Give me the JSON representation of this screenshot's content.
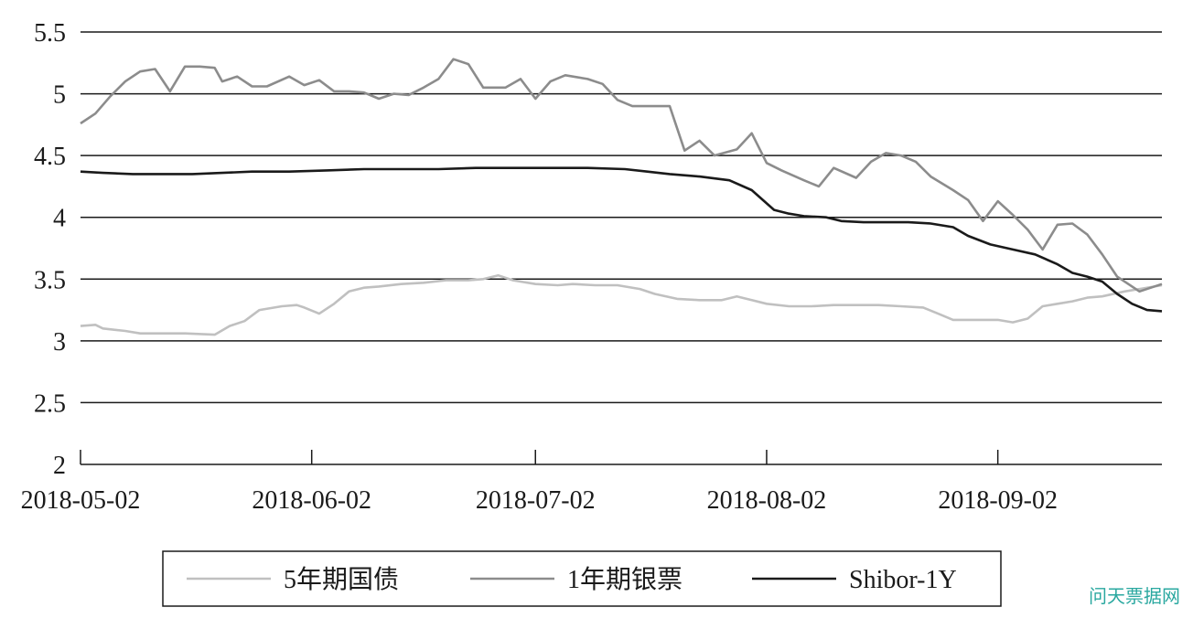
{
  "watermark": "问天票据网",
  "chart_data": {
    "type": "line",
    "title": "",
    "xlabel": "",
    "ylabel": "",
    "ylim": [
      2,
      5.5
    ],
    "yticks": [
      "2",
      "2.5",
      "3",
      "3.5",
      "4",
      "4.5",
      "5",
      "5.5"
    ],
    "xticks": [
      "2018-05-02",
      "2018-06-02",
      "2018-07-02",
      "2018-08-02",
      "2018-09-02"
    ],
    "x_range": [
      "2018-05-02",
      "2018-09-24"
    ],
    "grid": "horizontal",
    "legend": "bottom",
    "series": [
      {
        "name": "5年期国债",
        "color": "#c0c0c0",
        "points": [
          [
            "2018-05-02",
            3.12
          ],
          [
            "2018-05-04",
            3.13
          ],
          [
            "2018-05-05",
            3.1
          ],
          [
            "2018-05-08",
            3.08
          ],
          [
            "2018-05-10",
            3.06
          ],
          [
            "2018-05-13",
            3.06
          ],
          [
            "2018-05-16",
            3.06
          ],
          [
            "2018-05-20",
            3.05
          ],
          [
            "2018-05-22",
            3.12
          ],
          [
            "2018-05-24",
            3.16
          ],
          [
            "2018-05-26",
            3.25
          ],
          [
            "2018-05-29",
            3.28
          ],
          [
            "2018-05-31",
            3.29
          ],
          [
            "2018-06-01",
            3.27
          ],
          [
            "2018-06-03",
            3.22
          ],
          [
            "2018-06-05",
            3.3
          ],
          [
            "2018-06-07",
            3.4
          ],
          [
            "2018-06-09",
            3.43
          ],
          [
            "2018-06-11",
            3.44
          ],
          [
            "2018-06-14",
            3.46
          ],
          [
            "2018-06-17",
            3.47
          ],
          [
            "2018-06-20",
            3.49
          ],
          [
            "2018-06-23",
            3.49
          ],
          [
            "2018-06-25",
            3.5
          ],
          [
            "2018-06-27",
            3.53
          ],
          [
            "2018-06-29",
            3.49
          ],
          [
            "2018-07-02",
            3.46
          ],
          [
            "2018-07-05",
            3.45
          ],
          [
            "2018-07-07",
            3.46
          ],
          [
            "2018-07-10",
            3.45
          ],
          [
            "2018-07-13",
            3.45
          ],
          [
            "2018-07-16",
            3.42
          ],
          [
            "2018-07-18",
            3.38
          ],
          [
            "2018-07-21",
            3.34
          ],
          [
            "2018-07-24",
            3.33
          ],
          [
            "2018-07-27",
            3.33
          ],
          [
            "2018-07-29",
            3.36
          ],
          [
            "2018-07-31",
            3.33
          ],
          [
            "2018-08-02",
            3.3
          ],
          [
            "2018-08-05",
            3.28
          ],
          [
            "2018-08-08",
            3.28
          ],
          [
            "2018-08-11",
            3.29
          ],
          [
            "2018-08-14",
            3.29
          ],
          [
            "2018-08-17",
            3.29
          ],
          [
            "2018-08-20",
            3.28
          ],
          [
            "2018-08-23",
            3.27
          ],
          [
            "2018-08-25",
            3.22
          ],
          [
            "2018-08-27",
            3.17
          ],
          [
            "2018-08-30",
            3.17
          ],
          [
            "2018-09-02",
            3.17
          ],
          [
            "2018-09-04",
            3.15
          ],
          [
            "2018-09-06",
            3.18
          ],
          [
            "2018-09-08",
            3.28
          ],
          [
            "2018-09-10",
            3.3
          ],
          [
            "2018-09-12",
            3.32
          ],
          [
            "2018-09-14",
            3.35
          ],
          [
            "2018-09-16",
            3.36
          ],
          [
            "2018-09-19",
            3.4
          ],
          [
            "2018-09-21",
            3.42
          ],
          [
            "2018-09-24",
            3.45
          ]
        ]
      },
      {
        "name": "1年期银票",
        "color": "#8c8c8c",
        "points": [
          [
            "2018-05-02",
            4.76
          ],
          [
            "2018-05-04",
            4.84
          ],
          [
            "2018-05-06",
            4.98
          ],
          [
            "2018-05-08",
            5.1
          ],
          [
            "2018-05-10",
            5.18
          ],
          [
            "2018-05-12",
            5.2
          ],
          [
            "2018-05-14",
            5.02
          ],
          [
            "2018-05-16",
            5.22
          ],
          [
            "2018-05-18",
            5.22
          ],
          [
            "2018-05-20",
            5.21
          ],
          [
            "2018-05-21",
            5.1
          ],
          [
            "2018-05-23",
            5.14
          ],
          [
            "2018-05-25",
            5.06
          ],
          [
            "2018-05-27",
            5.06
          ],
          [
            "2018-05-30",
            5.14
          ],
          [
            "2018-06-01",
            5.07
          ],
          [
            "2018-06-03",
            5.11
          ],
          [
            "2018-06-05",
            5.02
          ],
          [
            "2018-06-07",
            5.02
          ],
          [
            "2018-06-09",
            5.01
          ],
          [
            "2018-06-11",
            4.96
          ],
          [
            "2018-06-13",
            5.0
          ],
          [
            "2018-06-15",
            4.99
          ],
          [
            "2018-06-17",
            5.05
          ],
          [
            "2018-06-19",
            5.12
          ],
          [
            "2018-06-21",
            5.28
          ],
          [
            "2018-06-23",
            5.24
          ],
          [
            "2018-06-25",
            5.05
          ],
          [
            "2018-06-28",
            5.05
          ],
          [
            "2018-06-30",
            5.12
          ],
          [
            "2018-07-02",
            4.96
          ],
          [
            "2018-07-04",
            5.1
          ],
          [
            "2018-07-06",
            5.15
          ],
          [
            "2018-07-09",
            5.12
          ],
          [
            "2018-07-11",
            5.08
          ],
          [
            "2018-07-13",
            4.95
          ],
          [
            "2018-07-15",
            4.9
          ],
          [
            "2018-07-18",
            4.9
          ],
          [
            "2018-07-20",
            4.9
          ],
          [
            "2018-07-22",
            4.54
          ],
          [
            "2018-07-24",
            4.62
          ],
          [
            "2018-07-26",
            4.5
          ],
          [
            "2018-07-29",
            4.55
          ],
          [
            "2018-07-31",
            4.68
          ],
          [
            "2018-08-02",
            4.44
          ],
          [
            "2018-08-04",
            4.38
          ],
          [
            "2018-08-07",
            4.3
          ],
          [
            "2018-08-09",
            4.25
          ],
          [
            "2018-08-11",
            4.4
          ],
          [
            "2018-08-14",
            4.32
          ],
          [
            "2018-08-16",
            4.45
          ],
          [
            "2018-08-18",
            4.52
          ],
          [
            "2018-08-20",
            4.5
          ],
          [
            "2018-08-22",
            4.45
          ],
          [
            "2018-08-24",
            4.33
          ],
          [
            "2018-08-27",
            4.22
          ],
          [
            "2018-08-29",
            4.14
          ],
          [
            "2018-08-31",
            3.97
          ],
          [
            "2018-09-02",
            4.13
          ],
          [
            "2018-09-04",
            4.02
          ],
          [
            "2018-09-06",
            3.9
          ],
          [
            "2018-09-08",
            3.74
          ],
          [
            "2018-09-10",
            3.94
          ],
          [
            "2018-09-12",
            3.95
          ],
          [
            "2018-09-14",
            3.86
          ],
          [
            "2018-09-16",
            3.7
          ],
          [
            "2018-09-18",
            3.52
          ],
          [
            "2018-09-21",
            3.4
          ],
          [
            "2018-09-24",
            3.46
          ]
        ]
      },
      {
        "name": "Shibor-1Y",
        "color": "#1a1a1a",
        "points": [
          [
            "2018-05-02",
            4.37
          ],
          [
            "2018-05-05",
            4.36
          ],
          [
            "2018-05-09",
            4.35
          ],
          [
            "2018-05-13",
            4.35
          ],
          [
            "2018-05-17",
            4.35
          ],
          [
            "2018-05-21",
            4.36
          ],
          [
            "2018-05-25",
            4.37
          ],
          [
            "2018-05-30",
            4.37
          ],
          [
            "2018-06-04",
            4.38
          ],
          [
            "2018-06-09",
            4.39
          ],
          [
            "2018-06-14",
            4.39
          ],
          [
            "2018-06-19",
            4.39
          ],
          [
            "2018-06-24",
            4.4
          ],
          [
            "2018-06-29",
            4.4
          ],
          [
            "2018-07-04",
            4.4
          ],
          [
            "2018-07-09",
            4.4
          ],
          [
            "2018-07-14",
            4.39
          ],
          [
            "2018-07-17",
            4.37
          ],
          [
            "2018-07-20",
            4.35
          ],
          [
            "2018-07-24",
            4.33
          ],
          [
            "2018-07-28",
            4.3
          ],
          [
            "2018-07-31",
            4.22
          ],
          [
            "2018-08-03",
            4.06
          ],
          [
            "2018-08-05",
            4.03
          ],
          [
            "2018-08-07",
            4.01
          ],
          [
            "2018-08-10",
            4.0
          ],
          [
            "2018-08-12",
            3.97
          ],
          [
            "2018-08-15",
            3.96
          ],
          [
            "2018-08-18",
            3.96
          ],
          [
            "2018-08-21",
            3.96
          ],
          [
            "2018-08-24",
            3.95
          ],
          [
            "2018-08-27",
            3.92
          ],
          [
            "2018-08-29",
            3.85
          ],
          [
            "2018-09-01",
            3.78
          ],
          [
            "2018-09-04",
            3.74
          ],
          [
            "2018-09-07",
            3.7
          ],
          [
            "2018-09-10",
            3.62
          ],
          [
            "2018-09-12",
            3.55
          ],
          [
            "2018-09-14",
            3.52
          ],
          [
            "2018-09-16",
            3.48
          ],
          [
            "2018-09-18",
            3.38
          ],
          [
            "2018-09-20",
            3.3
          ],
          [
            "2018-09-22",
            3.25
          ],
          [
            "2018-09-24",
            3.24
          ]
        ]
      }
    ]
  }
}
